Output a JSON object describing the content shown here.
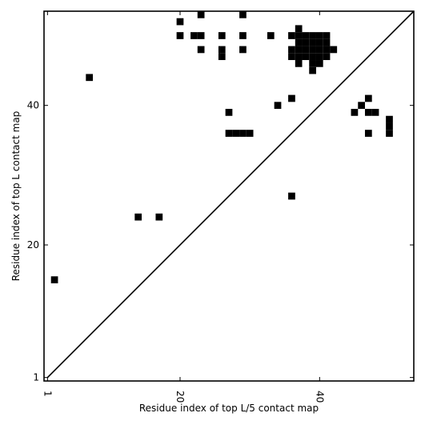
{
  "chart_data": {
    "type": "heatmap",
    "title": "",
    "xlabel": "Residue index of top L/5 contact map",
    "ylabel": "Residue index of top L contact map",
    "xlim": [
      0.5,
      53.5
    ],
    "ylim": [
      0.5,
      53.5
    ],
    "xticks": [
      1,
      20,
      40
    ],
    "yticks": [
      1,
      20,
      40
    ],
    "grid": false,
    "diagonal_line": true,
    "cell_color": "#000000",
    "cells": [
      [
        2,
        15
      ],
      [
        7,
        44
      ],
      [
        14,
        24
      ],
      [
        17,
        24
      ],
      [
        20,
        50
      ],
      [
        20,
        52
      ],
      [
        22,
        50
      ],
      [
        23,
        50
      ],
      [
        23,
        53
      ],
      [
        23,
        48
      ],
      [
        26,
        50
      ],
      [
        26,
        48
      ],
      [
        26,
        47
      ],
      [
        27,
        39
      ],
      [
        27,
        36
      ],
      [
        28,
        36
      ],
      [
        29,
        36
      ],
      [
        30,
        36
      ],
      [
        29,
        53
      ],
      [
        29,
        50
      ],
      [
        29,
        48
      ],
      [
        33,
        50
      ],
      [
        34,
        40
      ],
      [
        36,
        27
      ],
      [
        36,
        41
      ],
      [
        36,
        50
      ],
      [
        36,
        48
      ],
      [
        36,
        47
      ],
      [
        37,
        51
      ],
      [
        37,
        50
      ],
      [
        37,
        49
      ],
      [
        37,
        48
      ],
      [
        37,
        47
      ],
      [
        37,
        46
      ],
      [
        38,
        50
      ],
      [
        38,
        49
      ],
      [
        38,
        48
      ],
      [
        38,
        47
      ],
      [
        39,
        50
      ],
      [
        39,
        49
      ],
      [
        39,
        48
      ],
      [
        39,
        47
      ],
      [
        39,
        46
      ],
      [
        39,
        45
      ],
      [
        40,
        50
      ],
      [
        40,
        49
      ],
      [
        40,
        48
      ],
      [
        40,
        47
      ],
      [
        40,
        46
      ],
      [
        41,
        50
      ],
      [
        41,
        49
      ],
      [
        41,
        48
      ],
      [
        41,
        47
      ],
      [
        42,
        48
      ],
      [
        45,
        39
      ],
      [
        46,
        40
      ],
      [
        47,
        41
      ],
      [
        47,
        39
      ],
      [
        47,
        36
      ],
      [
        48,
        39
      ],
      [
        50,
        38
      ],
      [
        50,
        37
      ],
      [
        50,
        36
      ]
    ]
  }
}
